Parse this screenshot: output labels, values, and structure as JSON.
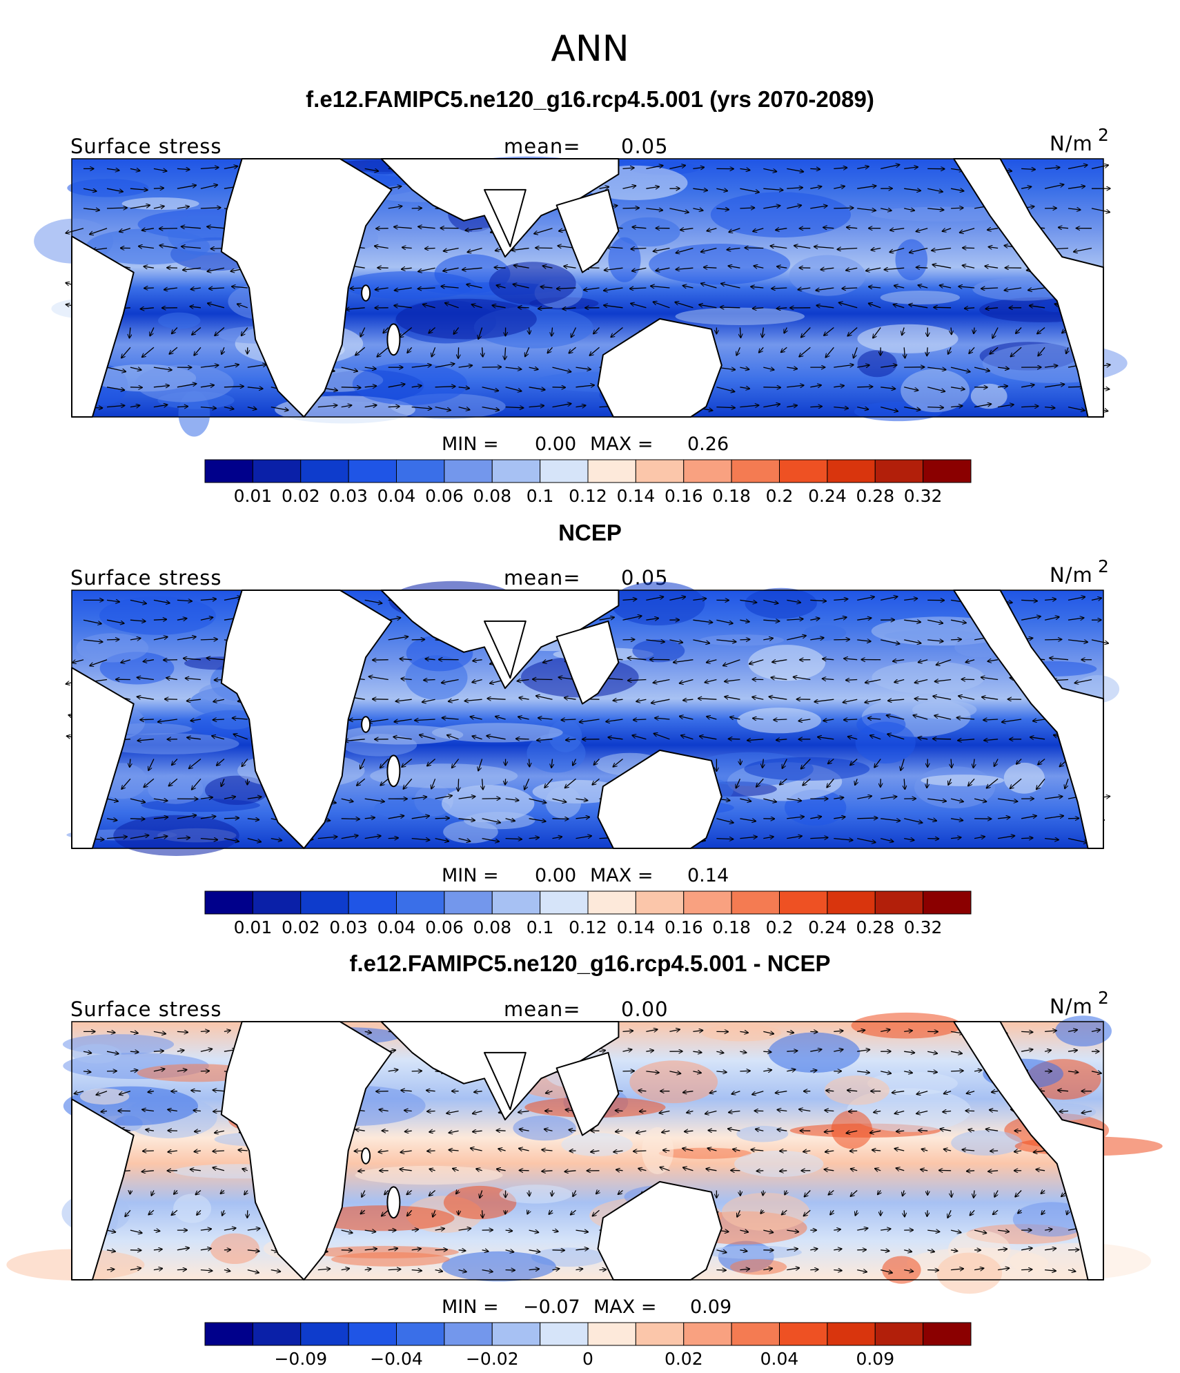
{
  "main_title": "ANN",
  "colors": {
    "land": "#ffffff",
    "coast": "#000000",
    "arrow": "#000000",
    "abs_scale": [
      "#00008b",
      "#0a20a8",
      "#0e3ccc",
      "#1f55e6",
      "#3a6fe8",
      "#7397ec",
      "#a7c1f3",
      "#d6e4f9",
      "#fde9da",
      "#fbc6aa",
      "#f9a180",
      "#f47b52",
      "#ee5123",
      "#d9350d",
      "#b21f0a",
      "#8b0000"
    ],
    "diff_scale": [
      "#00008b",
      "#0a20a8",
      "#0e3ccc",
      "#1f55e6",
      "#3a6fe8",
      "#7397ec",
      "#a7c1f3",
      "#d6e4f9",
      "#fde9da",
      "#fbc6aa",
      "#f9a180",
      "#f47b52",
      "#ee5123",
      "#d9350d",
      "#b21f0a",
      "#8b0000"
    ]
  },
  "chart_data": [
    {
      "type": "heatmap",
      "title": "f.e12.FAMIPC5.ne120_g16.rcp4.5.001 (yrs 2070-2089)",
      "variable": "Surface stress",
      "units": "N/m",
      "units_sup": "2",
      "mean_label": "mean=",
      "mean": "0.05",
      "min_label": "MIN =",
      "min": "0.00",
      "max_label": "MAX =",
      "max": "0.26",
      "colorbar_ticks": [
        "0.01",
        "0.02",
        "0.03",
        "0.04",
        "0.06",
        "0.08",
        "0.1",
        "0.12",
        "0.14",
        "0.16",
        "0.18",
        "0.2",
        "0.24",
        "0.28",
        "0.32"
      ],
      "overlay": "wind stress vectors",
      "palette": "abs_scale"
    },
    {
      "type": "heatmap",
      "title": "NCEP",
      "variable": "Surface stress",
      "units": "N/m",
      "units_sup": "2",
      "mean_label": "mean=",
      "mean": "0.05",
      "min_label": "MIN =",
      "min": "0.00",
      "max_label": "MAX =",
      "max": "0.14",
      "colorbar_ticks": [
        "0.01",
        "0.02",
        "0.03",
        "0.04",
        "0.06",
        "0.08",
        "0.1",
        "0.12",
        "0.14",
        "0.16",
        "0.18",
        "0.2",
        "0.24",
        "0.28",
        "0.32"
      ],
      "overlay": "wind stress vectors",
      "palette": "abs_scale"
    },
    {
      "type": "heatmap",
      "title": "f.e12.FAMIPC5.ne120_g16.rcp4.5.001 - NCEP",
      "variable": "Surface stress",
      "units": "N/m",
      "units_sup": "2",
      "mean_label": "mean=",
      "mean": "0.00",
      "min_label": "MIN =",
      "min": "−0.07",
      "max_label": "MAX =",
      "max": "0.09",
      "colorbar_ticks": [
        "−0.09",
        "−0.04",
        "−0.02",
        "0",
        "0.02",
        "0.04",
        "0.09"
      ],
      "overlay": "wind stress vectors",
      "palette": "diff_scale"
    }
  ]
}
